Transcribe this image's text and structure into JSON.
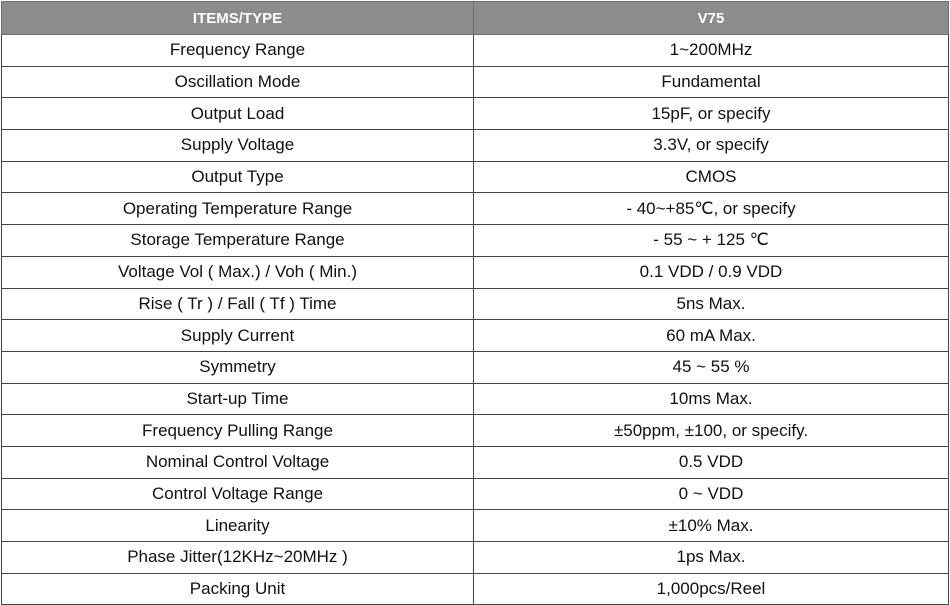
{
  "table": {
    "headers": [
      "ITEMS/TYPE",
      "V75"
    ],
    "rows": [
      [
        "Frequency Range",
        "1~200MHz"
      ],
      [
        "Oscillation Mode",
        "Fundamental"
      ],
      [
        "Output Load",
        "15pF, or specify"
      ],
      [
        "Supply Voltage",
        "3.3V, or specify"
      ],
      [
        "Output Type",
        "CMOS"
      ],
      [
        "Operating Temperature Range",
        "- 40~+85℃, or specify"
      ],
      [
        "Storage Temperature Range",
        "- 55 ~ + 125 ℃"
      ],
      [
        "Voltage Vol ( Max.) / Voh ( Min.)",
        "0.1 VDD / 0.9 VDD"
      ],
      [
        "Rise ( Tr ) / Fall ( Tf ) Time",
        "5ns Max."
      ],
      [
        "Supply Current",
        "60 mA Max."
      ],
      [
        "Symmetry",
        "45 ~ 55 %"
      ],
      [
        "Start-up Time",
        "10ms Max."
      ],
      [
        "Frequency Pulling Range",
        "±50ppm, ±100, or specify."
      ],
      [
        "Nominal Control Voltage",
        "0.5 VDD"
      ],
      [
        "Control Voltage Range",
        "0 ~ VDD"
      ],
      [
        "Linearity",
        "±10% Max."
      ],
      [
        "Phase Jitter(12KHz~20MHz )",
        "1ps Max."
      ],
      [
        "Packing Unit",
        "1,000pcs/Reel"
      ]
    ]
  }
}
